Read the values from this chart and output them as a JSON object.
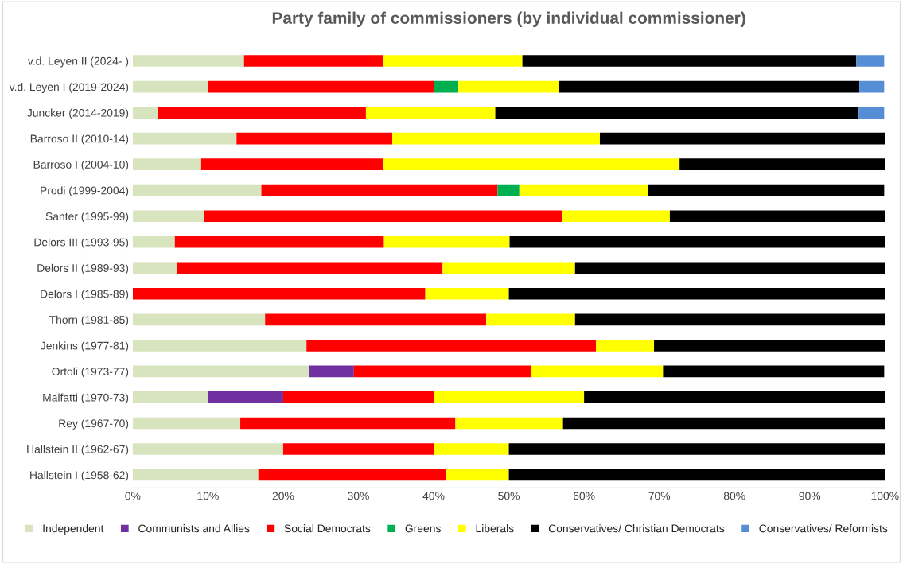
{
  "chart_data": {
    "type": "bar",
    "orientation": "horizontal",
    "stacked": true,
    "title": "Party family of commissioners (by individual commissioner)",
    "categories": [
      "v.d. Leyen II (2024- )",
      "v.d. Leyen I (2019-2024)",
      "Juncker (2014-2019)",
      "Barroso II (2010-14)",
      "Barroso I (2004-10)",
      "Prodi (1999-2004)",
      "Santer (1995-99)",
      "Delors III (1993-95)",
      "Delors II (1989-93)",
      "Delors I (1985-89)",
      "Thorn (1981-85)",
      "Jenkins (1977-81)",
      "Ortoli (1973-77)",
      "Malfatti (1970-73)",
      "Rey (1967-70)",
      "Hallstein II (1962-67)",
      "Hallstein I (1958-62)"
    ],
    "series": [
      {
        "name": "Independent",
        "color": "#d7e4bd",
        "values": [
          14.8,
          10.0,
          3.4,
          13.8,
          9.1,
          17.1,
          9.5,
          5.6,
          5.9,
          null,
          17.6,
          23.1,
          23.5,
          10,
          14.3,
          20,
          16.7
        ]
      },
      {
        "name": "Communists and Allies",
        "color": "#7030a0",
        "values": [
          null,
          null,
          null,
          null,
          null,
          null,
          null,
          null,
          null,
          null,
          null,
          null,
          5.9,
          10,
          null,
          null,
          null
        ]
      },
      {
        "name": "Social Democrats",
        "color": "#ff0000",
        "values": [
          18.5,
          30.0,
          27.6,
          20.7,
          24.2,
          31.4,
          47.6,
          27.8,
          35.3,
          38.9,
          29.4,
          38.5,
          23.5,
          20,
          28.6,
          20,
          25.0
        ]
      },
      {
        "name": "Greens",
        "color": "#00b050",
        "values": [
          null,
          3.3,
          null,
          null,
          null,
          2.9,
          null,
          null,
          null,
          null,
          null,
          null,
          null,
          null,
          null,
          null,
          null
        ]
      },
      {
        "name": "Liberals",
        "color": "#ffff00",
        "values": [
          18.5,
          13.3,
          17.2,
          27.6,
          39.4,
          17.1,
          14.3,
          16.7,
          17.6,
          11.1,
          11.8,
          7.7,
          17.6,
          20,
          14.3,
          10,
          8.3
        ]
      },
      {
        "name": "Conservatives/ Christian Democrats",
        "color": "#000000",
        "values": [
          44.4,
          40.0,
          48.3,
          37.9,
          27.3,
          31.4,
          28.6,
          50.0,
          41.2,
          50.0,
          41.2,
          30.8,
          29.4,
          40,
          42.9,
          50,
          50.0
        ]
      },
      {
        "name": "Conservatives/ Reformists",
        "color": "#558ed5",
        "values": [
          3.7,
          3.3,
          3.4,
          null,
          null,
          null,
          null,
          null,
          null,
          null,
          null,
          null,
          null,
          null,
          null,
          null,
          null
        ]
      }
    ],
    "xlim": [
      0,
      100
    ],
    "xticks": [
      {
        "value": 0,
        "label": "0%"
      },
      {
        "value": 10,
        "label": "10%"
      },
      {
        "value": 20,
        "label": "20%"
      },
      {
        "value": 30,
        "label": "30%"
      },
      {
        "value": 40,
        "label": "40%"
      },
      {
        "value": 50,
        "label": "50%"
      },
      {
        "value": 60,
        "label": "60%"
      },
      {
        "value": 70,
        "label": "70%"
      },
      {
        "value": 80,
        "label": "80%"
      },
      {
        "value": 90,
        "label": "90%"
      },
      {
        "value": 100,
        "label": "100%"
      }
    ],
    "legend": "bottom",
    "grid": false
  }
}
